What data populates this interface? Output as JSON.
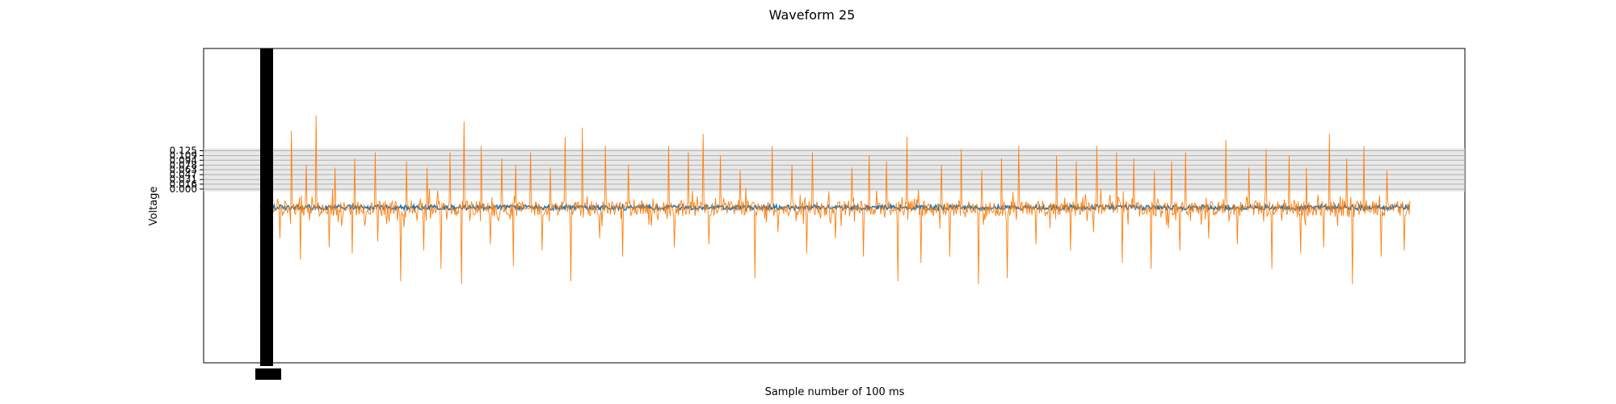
{
  "chart_data": {
    "type": "line",
    "title": "Waveform 25",
    "xlabel": "Sample number of 100 ms",
    "ylabel": "Voltage",
    "x_range": [
      0,
      2000
    ],
    "ylim": [
      -0.38,
      0.32
    ],
    "yticks": [
      0.0,
      0.016,
      0.031,
      0.047,
      0.063,
      0.078,
      0.094,
      0.109,
      0.125
    ],
    "ytick_labels": [
      "0.000",
      "0.016",
      "0.031",
      "0.047",
      "0.063",
      "0.078",
      "0.094",
      "0.109",
      "0.125"
    ],
    "grid": true,
    "series": [
      {
        "color": "#1f77b4",
        "baseline": -0.06,
        "noise_amplitude": 0.008
      },
      {
        "color": "#ff7f0e",
        "baseline": -0.063,
        "noise_amplitude": 0.025,
        "positive_spikes": [
          [
            20,
            0.05
          ],
          [
            55,
            0.19
          ],
          [
            80,
            0.08
          ],
          [
            97,
            0.24
          ],
          [
            130,
            0.07
          ],
          [
            165,
            0.1
          ],
          [
            200,
            0.12
          ],
          [
            255,
            0.09
          ],
          [
            290,
            0.07
          ],
          [
            330,
            0.12
          ],
          [
            355,
            0.22
          ],
          [
            385,
            0.14
          ],
          [
            420,
            0.1
          ],
          [
            445,
            0.08
          ],
          [
            470,
            0.12
          ],
          [
            505,
            0.07
          ],
          [
            530,
            0.17
          ],
          [
            560,
            0.2
          ],
          [
            600,
            0.14
          ],
          [
            640,
            0.08
          ],
          [
            680,
            0.06
          ],
          [
            710,
            0.14
          ],
          [
            745,
            0.12
          ],
          [
            770,
            0.18
          ],
          [
            800,
            0.11
          ],
          [
            835,
            0.06
          ],
          [
            860,
            0.1
          ],
          [
            890,
            0.14
          ],
          [
            925,
            0.08
          ],
          [
            960,
            0.12
          ],
          [
            1000,
            0.18
          ],
          [
            1030,
            0.07
          ],
          [
            1060,
            0.11
          ],
          [
            1090,
            0.09
          ],
          [
            1125,
            0.17
          ],
          [
            1150,
            0.11
          ],
          [
            1185,
            0.08
          ],
          [
            1220,
            0.13
          ],
          [
            1255,
            0.06
          ],
          [
            1290,
            0.1
          ],
          [
            1320,
            0.14
          ],
          [
            1350,
            0.07
          ],
          [
            1385,
            0.11
          ],
          [
            1420,
            0.09
          ],
          [
            1455,
            0.14
          ],
          [
            1490,
            0.12
          ],
          [
            1520,
            0.1
          ],
          [
            1555,
            0.06
          ],
          [
            1585,
            0.09
          ],
          [
            1610,
            0.12
          ],
          [
            1650,
            0.08
          ],
          [
            1680,
            0.16
          ],
          [
            1720,
            0.07
          ],
          [
            1750,
            0.13
          ],
          [
            1790,
            0.11
          ],
          [
            1820,
            0.07
          ],
          [
            1860,
            0.18
          ],
          [
            1890,
            0.1
          ],
          [
            1920,
            0.14
          ],
          [
            1960,
            0.06
          ],
          [
            1990,
            0.08
          ]
        ],
        "negative_spikes": [
          [
            8,
            -0.22
          ],
          [
            35,
            -0.16
          ],
          [
            70,
            -0.23
          ],
          [
            120,
            -0.19
          ],
          [
            160,
            -0.21
          ],
          [
            205,
            -0.17
          ],
          [
            245,
            -0.3
          ],
          [
            285,
            -0.2
          ],
          [
            315,
            -0.26
          ],
          [
            350,
            -0.31
          ],
          [
            400,
            -0.18
          ],
          [
            440,
            -0.25
          ],
          [
            490,
            -0.2
          ],
          [
            540,
            -0.3
          ],
          [
            590,
            -0.16
          ],
          [
            630,
            -0.22
          ],
          [
            680,
            -0.12
          ],
          [
            720,
            -0.19
          ],
          [
            780,
            -0.18
          ],
          [
            860,
            -0.29
          ],
          [
            900,
            -0.14
          ],
          [
            950,
            -0.21
          ],
          [
            1000,
            -0.16
          ],
          [
            1050,
            -0.22
          ],
          [
            1110,
            -0.3
          ],
          [
            1150,
            -0.24
          ],
          [
            1200,
            -0.22
          ],
          [
            1250,
            -0.31
          ],
          [
            1300,
            -0.29
          ],
          [
            1350,
            -0.18
          ],
          [
            1410,
            -0.2
          ],
          [
            1450,
            -0.14
          ],
          [
            1500,
            -0.24
          ],
          [
            1550,
            -0.26
          ],
          [
            1600,
            -0.2
          ],
          [
            1650,
            -0.16
          ],
          [
            1700,
            -0.18
          ],
          [
            1760,
            -0.26
          ],
          [
            1810,
            -0.21
          ],
          [
            1850,
            -0.19
          ],
          [
            1900,
            -0.31
          ],
          [
            1950,
            -0.22
          ],
          [
            1990,
            -0.2
          ]
        ]
      }
    ]
  }
}
